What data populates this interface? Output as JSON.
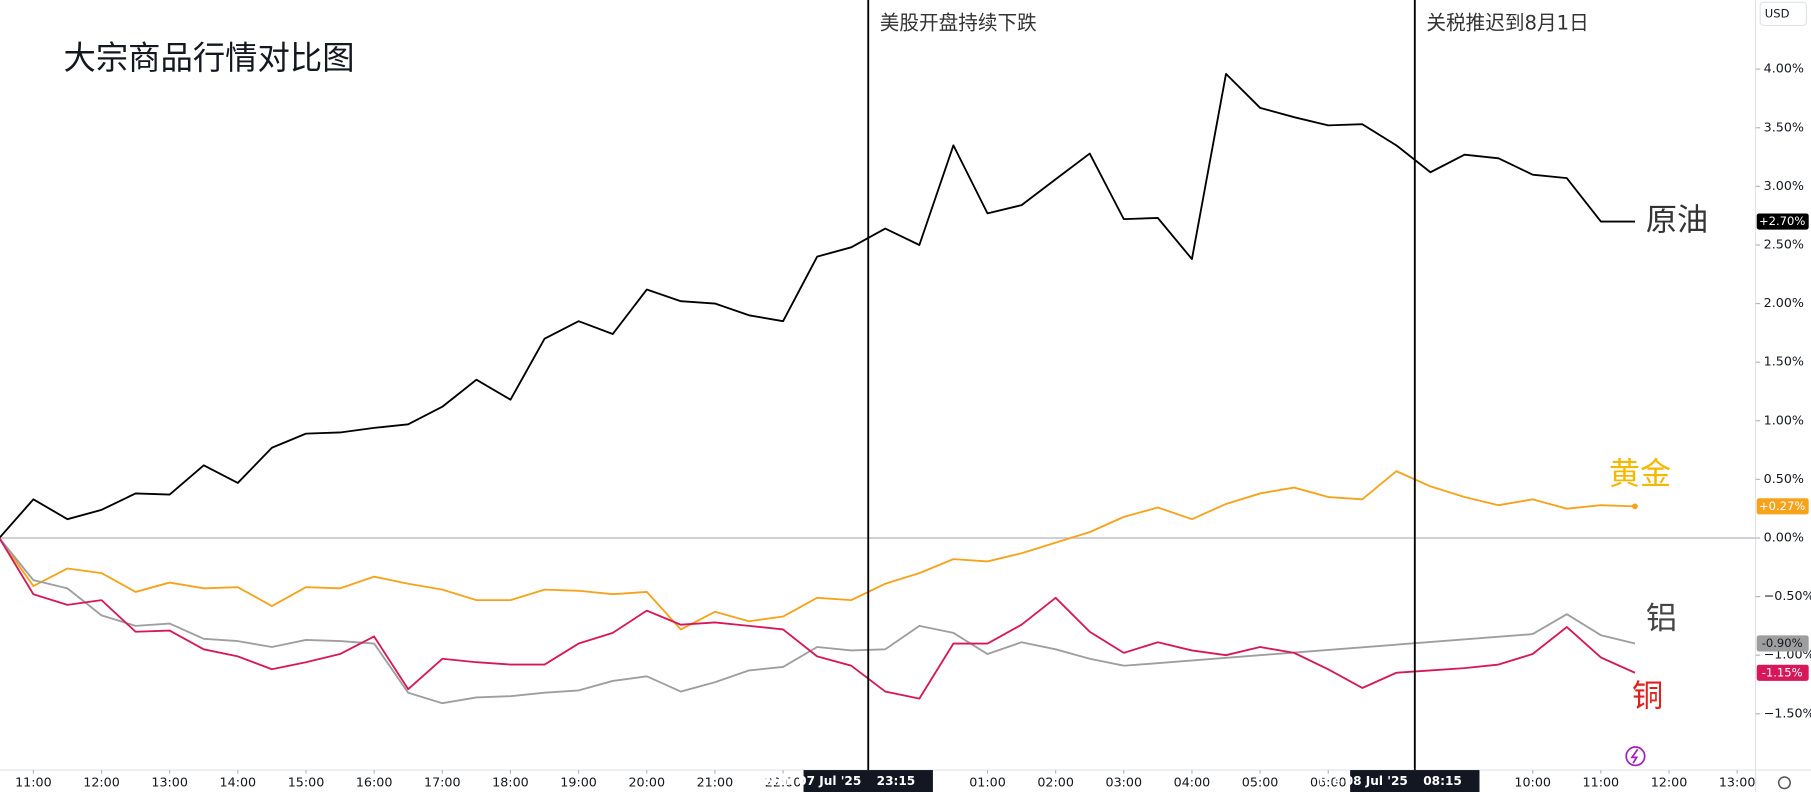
{
  "chart_data": {
    "type": "line",
    "title": "大宗商品行情对比图",
    "currency": "USD",
    "x": [
      -0.5,
      0,
      0.5,
      1,
      1.5,
      2,
      2.5,
      3,
      3.5,
      4,
      4.5,
      5,
      5.5,
      6,
      6.5,
      7,
      7.5,
      8,
      8.5,
      9,
      9.5,
      10,
      10.5,
      11,
      11.5,
      12,
      12.5,
      13,
      13.5,
      14,
      14.5,
      15,
      15.5,
      16,
      16.5,
      17,
      17.5,
      18,
      18.5,
      19,
      19.5,
      20,
      20.5,
      21,
      21.5,
      22,
      22.5,
      23,
      23.5
    ],
    "series": [
      {
        "name": "原油",
        "color": "#000000",
        "label_color": "#333333",
        "last_label": "+2.70%",
        "values": [
          0,
          0.33,
          0.16,
          0.24,
          0.38,
          0.37,
          0.62,
          0.47,
          0.77,
          0.89,
          0.9,
          0.94,
          0.97,
          1.12,
          1.35,
          1.18,
          1.7,
          1.85,
          1.74,
          2.12,
          2.02,
          2.0,
          1.9,
          1.85,
          2.4,
          2.48,
          2.64,
          2.5,
          3.35,
          2.77,
          2.84,
          3.06,
          3.28,
          2.72,
          2.73,
          2.38,
          3.96,
          3.67,
          3.59,
          3.52,
          3.53,
          3.35,
          3.12,
          3.27,
          3.24,
          3.1,
          3.07,
          2.7,
          2.7
        ]
      },
      {
        "name": "黄金",
        "color": "#f7a21b",
        "label_color": "#f5b800",
        "last_label": "+0.27%",
        "values": [
          0,
          -0.41,
          -0.26,
          -0.3,
          -0.46,
          -0.38,
          -0.43,
          -0.42,
          -0.58,
          -0.42,
          -0.43,
          -0.33,
          -0.39,
          -0.44,
          -0.53,
          -0.53,
          -0.44,
          -0.45,
          -0.48,
          -0.46,
          -0.78,
          -0.63,
          -0.71,
          -0.67,
          -0.51,
          -0.53,
          -0.39,
          -0.3,
          -0.18,
          -0.2,
          -0.13,
          -0.04,
          0.05,
          0.18,
          0.26,
          0.16,
          0.29,
          0.38,
          0.43,
          0.35,
          0.33,
          0.57,
          0.44,
          0.35,
          0.28,
          0.33,
          0.25,
          0.28,
          0.27
        ]
      },
      {
        "name": "铝",
        "color": "#9e9e9e",
        "label_color": "#444444",
        "last_label": "-0.90%",
        "values": [
          0,
          -0.36,
          -0.43,
          -0.66,
          -0.75,
          -0.73,
          -0.86,
          -0.88,
          -0.93,
          -0.87,
          -0.88,
          -0.9,
          -1.32,
          -1.41,
          -1.36,
          -1.35,
          -1.32,
          -1.3,
          -1.22,
          -1.18,
          -1.31,
          -1.23,
          -1.13,
          -1.1,
          -0.93,
          -0.96,
          -0.95,
          -0.75,
          -0.81,
          -0.99,
          -0.89,
          -0.95,
          -1.03,
          -1.09,
          null,
          null,
          null,
          null,
          null,
          null,
          null,
          null,
          null,
          null,
          null,
          -0.82,
          -0.65,
          -0.83,
          -0.9
        ]
      },
      {
        "name": "铜",
        "color": "#d6185a",
        "label_color": "#e0201c",
        "last_label": "-1.15%",
        "values": [
          0,
          -0.48,
          -0.57,
          -0.53,
          -0.8,
          -0.79,
          -0.95,
          -1.01,
          -1.12,
          -1.06,
          -0.99,
          -0.84,
          -1.29,
          -1.03,
          -1.06,
          -1.08,
          -1.08,
          -0.9,
          -0.81,
          -0.62,
          -0.74,
          -0.72,
          -0.75,
          -0.78,
          -1.01,
          -1.09,
          -1.31,
          -1.37,
          -0.9,
          -0.9,
          -0.74,
          -0.51,
          -0.8,
          -0.98,
          -0.89,
          -0.96,
          -1.0,
          -0.93,
          -0.98,
          -1.12,
          -1.28,
          -1.15,
          -1.13,
          -1.11,
          -1.08,
          -0.99,
          -0.76,
          -1.02,
          -1.15
        ]
      }
    ],
    "xlim": [
      -0.49,
      25.27
    ],
    "ylim": [
      -1.98,
      4.59
    ],
    "xticks": [
      {
        "value": 0,
        "label": "11:00"
      },
      {
        "value": 1,
        "label": "12:00"
      },
      {
        "value": 2,
        "label": "13:00"
      },
      {
        "value": 3,
        "label": "14:00"
      },
      {
        "value": 4,
        "label": "15:00"
      },
      {
        "value": 5,
        "label": "16:00"
      },
      {
        "value": 6,
        "label": "17:00"
      },
      {
        "value": 7,
        "label": "18:00"
      },
      {
        "value": 8,
        "label": "19:00"
      },
      {
        "value": 9,
        "label": "20:00"
      },
      {
        "value": 10,
        "label": "21:00"
      },
      {
        "value": 11,
        "label": "22:00"
      },
      {
        "value": 14,
        "label": "01:00"
      },
      {
        "value": 15,
        "label": "02:00"
      },
      {
        "value": 16,
        "label": "03:00"
      },
      {
        "value": 17,
        "label": "04:00"
      },
      {
        "value": 18,
        "label": "05:00"
      },
      {
        "value": 19,
        "label": "06:00"
      },
      {
        "value": 22,
        "label": "10:00"
      },
      {
        "value": 23,
        "label": "11:00"
      },
      {
        "value": 24,
        "label": "12:00"
      },
      {
        "value": 25,
        "label": "13:00"
      }
    ],
    "yticks": [
      {
        "value": -1.5,
        "label": "−1.50%"
      },
      {
        "value": -1.0,
        "label": "−1.00%"
      },
      {
        "value": -0.5,
        "label": "−0.50%"
      },
      {
        "value": 0,
        "label": "0.00%"
      },
      {
        "value": 0.5,
        "label": "0.50%"
      },
      {
        "value": 1.0,
        "label": "1.00%"
      },
      {
        "value": 1.5,
        "label": "1.50%"
      },
      {
        "value": 2.0,
        "label": "2.00%"
      },
      {
        "value": 2.5,
        "label": "2.50%"
      },
      {
        "value": 3.0,
        "label": "3.00%"
      },
      {
        "value": 3.5,
        "label": "3.50%"
      },
      {
        "value": 4.0,
        "label": "4.00%"
      }
    ],
    "events": [
      {
        "x": 12.25,
        "text": "美股开盘持续下跌",
        "date": "Mon 07 Jul '25",
        "time": "23:15"
      },
      {
        "x": 20.27,
        "text": "关税推迟到8月1日",
        "date": "Tue 08 Jul '25",
        "time": "08:15"
      }
    ]
  }
}
